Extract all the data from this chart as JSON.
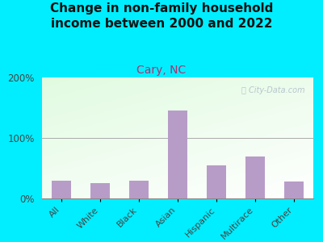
{
  "title": "Change in non-family household\nincome between 2000 and 2022",
  "subtitle": "Cary, NC",
  "categories": [
    "All",
    "White",
    "Black",
    "Asian",
    "Hispanic",
    "Multirace",
    "Other"
  ],
  "values": [
    30,
    25,
    30,
    145,
    55,
    70,
    28
  ],
  "bar_color": "#b89cc8",
  "title_fontsize": 11,
  "subtitle_fontsize": 10,
  "subtitle_color": "#b03070",
  "background_outer": "#00eeff",
  "ylim": [
    0,
    200
  ],
  "yticks": [
    0,
    100,
    200
  ],
  "ytick_labels": [
    "0%",
    "100%",
    "200%"
  ],
  "watermark": "ⓘ City-Data.com",
  "watermark_color": "#b0bcc8"
}
